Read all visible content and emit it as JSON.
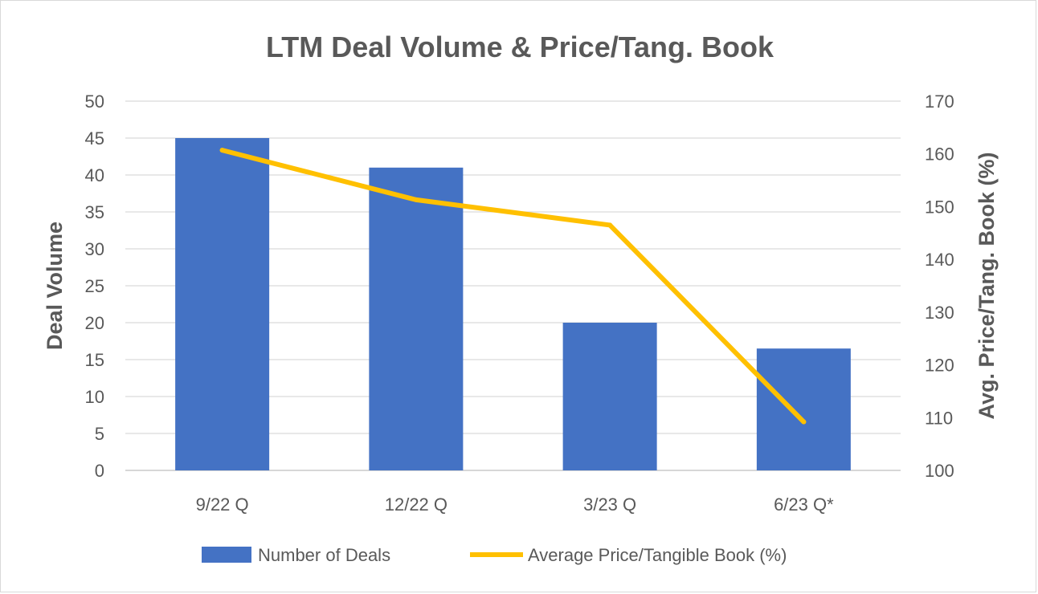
{
  "chart_data": {
    "type": "bar",
    "title": "LTM Deal Volume & Price/Tang. Book",
    "categories": [
      "9/22 Q",
      "12/22 Q",
      "3/23 Q",
      "6/23 Q*"
    ],
    "series": [
      {
        "name": "Number of Deals",
        "type": "bar",
        "axis": "left",
        "color": "#4472C4",
        "values": [
          45,
          41,
          20,
          16.5
        ]
      },
      {
        "name": "Average Price/Tangible Book (%)",
        "type": "line",
        "axis": "right",
        "color": "#FFC000",
        "values": [
          160.7,
          151.3,
          146.5,
          109.2
        ]
      }
    ],
    "ylabel": "Deal Volume",
    "ylim": [
      0,
      50
    ],
    "yticks": [
      "0",
      "5",
      "10",
      "15",
      "20",
      "25",
      "30",
      "35",
      "40",
      "45",
      "50"
    ],
    "y2label": "Avg. Price/Tang. Book (%)",
    "y2lim": [
      100,
      170
    ],
    "y2ticks": [
      "100",
      "110",
      "120",
      "130",
      "140",
      "150",
      "160",
      "170"
    ],
    "grid": true,
    "legend": "bottom"
  }
}
